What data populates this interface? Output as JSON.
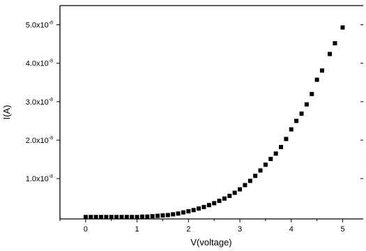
{
  "chart_data": {
    "type": "scatter",
    "title": "",
    "xlabel": "V(voltage)",
    "ylabel": "I(A)",
    "xlim": [
      -0.5,
      5.4
    ],
    "ylim": [
      -5e-10,
      5.5e-08
    ],
    "x_ticks": [
      0,
      1,
      2,
      3,
      4,
      5
    ],
    "x_tick_labels": [
      "0",
      "1",
      "2",
      "3",
      "4",
      "5"
    ],
    "y_ticks": [
      1e-08,
      2e-08,
      3e-08,
      4e-08,
      5e-08
    ],
    "y_tick_labels": [
      {
        "mantissa": "1.0x10",
        "exponent": "-8"
      },
      {
        "mantissa": "2.0x10",
        "exponent": "-8"
      },
      {
        "mantissa": "3.0x10",
        "exponent": "-8"
      },
      {
        "mantissa": "4.0x10",
        "exponent": "-8"
      },
      {
        "mantissa": "5.0x10",
        "exponent": "-8"
      }
    ],
    "grid": false,
    "marker": "square",
    "marker_color": "#000000",
    "points": [
      {
        "x": 0.0,
        "y": 0.0
      },
      {
        "x": 0.1,
        "y": 0.0
      },
      {
        "x": 0.2,
        "y": 0.0
      },
      {
        "x": 0.3,
        "y": 0.0
      },
      {
        "x": 0.4,
        "y": 0.0
      },
      {
        "x": 0.5,
        "y": 0.0
      },
      {
        "x": 0.6,
        "y": 0.0
      },
      {
        "x": 0.7,
        "y": 0.0
      },
      {
        "x": 0.8,
        "y": 0.0
      },
      {
        "x": 0.9,
        "y": 0.0
      },
      {
        "x": 1.0,
        "y": 0.0
      },
      {
        "x": 1.1,
        "y": 1e-10
      },
      {
        "x": 1.2,
        "y": 1e-10
      },
      {
        "x": 1.3,
        "y": 2e-10
      },
      {
        "x": 1.4,
        "y": 3e-10
      },
      {
        "x": 1.5,
        "y": 4e-10
      },
      {
        "x": 1.6,
        "y": 5e-10
      },
      {
        "x": 1.7,
        "y": 7e-10
      },
      {
        "x": 1.8,
        "y": 9e-10
      },
      {
        "x": 1.9,
        "y": 1.2e-09
      },
      {
        "x": 2.0,
        "y": 1.5e-09
      },
      {
        "x": 2.1,
        "y": 1.8e-09
      },
      {
        "x": 2.2,
        "y": 2.2e-09
      },
      {
        "x": 2.3,
        "y": 2.6e-09
      },
      {
        "x": 2.4,
        "y": 3.1e-09
      },
      {
        "x": 2.5,
        "y": 3.6e-09
      },
      {
        "x": 2.6,
        "y": 4.2e-09
      },
      {
        "x": 2.7,
        "y": 4.8e-09
      },
      {
        "x": 2.8,
        "y": 5.5e-09
      },
      {
        "x": 2.9,
        "y": 6.3e-09
      },
      {
        "x": 3.0,
        "y": 7.2e-09
      },
      {
        "x": 3.1,
        "y": 8.3e-09
      },
      {
        "x": 3.2,
        "y": 9.4e-09
      },
      {
        "x": 3.3,
        "y": 1.07e-08
      },
      {
        "x": 3.4,
        "y": 1.21e-08
      },
      {
        "x": 3.5,
        "y": 1.36e-08
      },
      {
        "x": 3.6,
        "y": 1.51e-08
      },
      {
        "x": 3.7,
        "y": 1.65e-08
      },
      {
        "x": 3.8,
        "y": 1.82e-08
      },
      {
        "x": 3.9,
        "y": 2.03e-08
      },
      {
        "x": 4.0,
        "y": 2.28e-08
      },
      {
        "x": 4.1,
        "y": 2.5e-08
      },
      {
        "x": 4.2,
        "y": 2.69e-08
      },
      {
        "x": 4.3,
        "y": 2.93e-08
      },
      {
        "x": 4.4,
        "y": 3.2e-08
      },
      {
        "x": 4.5,
        "y": 3.57e-08
      },
      {
        "x": 4.6,
        "y": 3.81e-08
      },
      {
        "x": 4.75,
        "y": 4.24e-08
      },
      {
        "x": 4.85,
        "y": 4.52e-08
      },
      {
        "x": 5.0,
        "y": 4.93e-08
      }
    ]
  }
}
